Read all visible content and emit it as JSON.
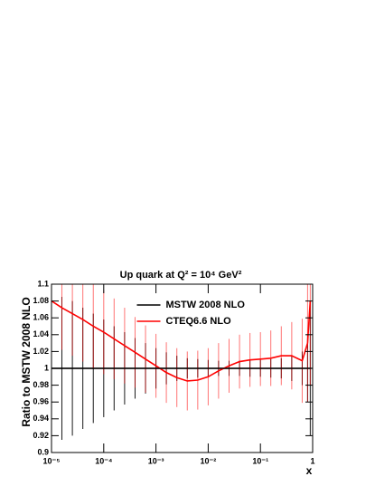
{
  "chart_data": {
    "type": "errorbar-line",
    "title": "Up quark at Q² = 10⁴ GeV²",
    "x_label": "x",
    "y_label": "Ratio to MSTW 2008 NLO",
    "x": [
      1e-05,
      1.58e-05,
      2.51e-05,
      3.98e-05,
      6.31e-05,
      0.0001,
      0.000158,
      0.000251,
      0.000398,
      0.000631,
      0.001,
      0.00158,
      0.00251,
      0.00398,
      0.00631,
      0.01,
      0.0158,
      0.0251,
      0.0398,
      0.0631,
      0.1,
      0.158,
      0.251,
      0.398,
      0.631,
      0.8,
      0.9
    ],
    "series": [
      {
        "name": "MSTW 2008 NLO",
        "color": "#000000",
        "values": [
          1,
          1,
          1,
          1,
          1,
          1,
          1,
          1,
          1,
          1,
          1,
          1,
          1,
          1,
          1,
          1,
          1,
          1,
          1,
          1,
          1,
          1,
          1,
          1,
          1,
          1,
          1
        ],
        "errors": [
          0.09,
          0.085,
          0.08,
          0.072,
          0.065,
          0.058,
          0.05,
          0.043,
          0.036,
          0.03,
          0.024,
          0.019,
          0.015,
          0.012,
          0.011,
          0.01,
          0.009,
          0.009,
          0.009,
          0.01,
          0.01,
          0.011,
          0.012,
          0.015,
          0.02,
          0.04,
          0.08
        ]
      },
      {
        "name": "CTEQ6.6 NLO",
        "color": "#ff0000",
        "values": [
          1.08,
          1.072,
          1.065,
          1.058,
          1.05,
          1.043,
          1.035,
          1.027,
          1.019,
          1.011,
          1.003,
          0.995,
          0.989,
          0.985,
          0.986,
          0.99,
          0.997,
          1.003,
          1.008,
          1.01,
          1.011,
          1.012,
          1.015,
          1.015,
          1.009,
          1.03,
          1.08
        ],
        "errors": [
          0.05,
          0.05,
          0.05,
          0.05,
          0.05,
          0.05,
          0.048,
          0.045,
          0.042,
          0.04,
          0.038,
          0.036,
          0.035,
          0.035,
          0.035,
          0.034,
          0.033,
          0.032,
          0.032,
          0.032,
          0.032,
          0.033,
          0.035,
          0.04,
          0.05,
          0.07,
          0.1
        ]
      }
    ],
    "xlog": true,
    "xlim": [
      1e-05,
      1
    ],
    "xticks": [
      {
        "value": 1e-05,
        "label": "10⁻⁵"
      },
      {
        "value": 0.0001,
        "label": "10⁻⁴"
      },
      {
        "value": 0.001,
        "label": "10⁻³"
      },
      {
        "value": 0.01,
        "label": "10⁻²"
      },
      {
        "value": 0.1,
        "label": "10⁻¹"
      },
      1
    ],
    "ylim": [
      0.9,
      1.1
    ],
    "yticks": [
      0.9,
      0.92,
      0.94,
      0.96,
      0.98,
      1,
      1.02,
      1.04,
      1.06,
      1.08,
      1.1
    ],
    "reference_line": 1,
    "legend": "upper center"
  }
}
